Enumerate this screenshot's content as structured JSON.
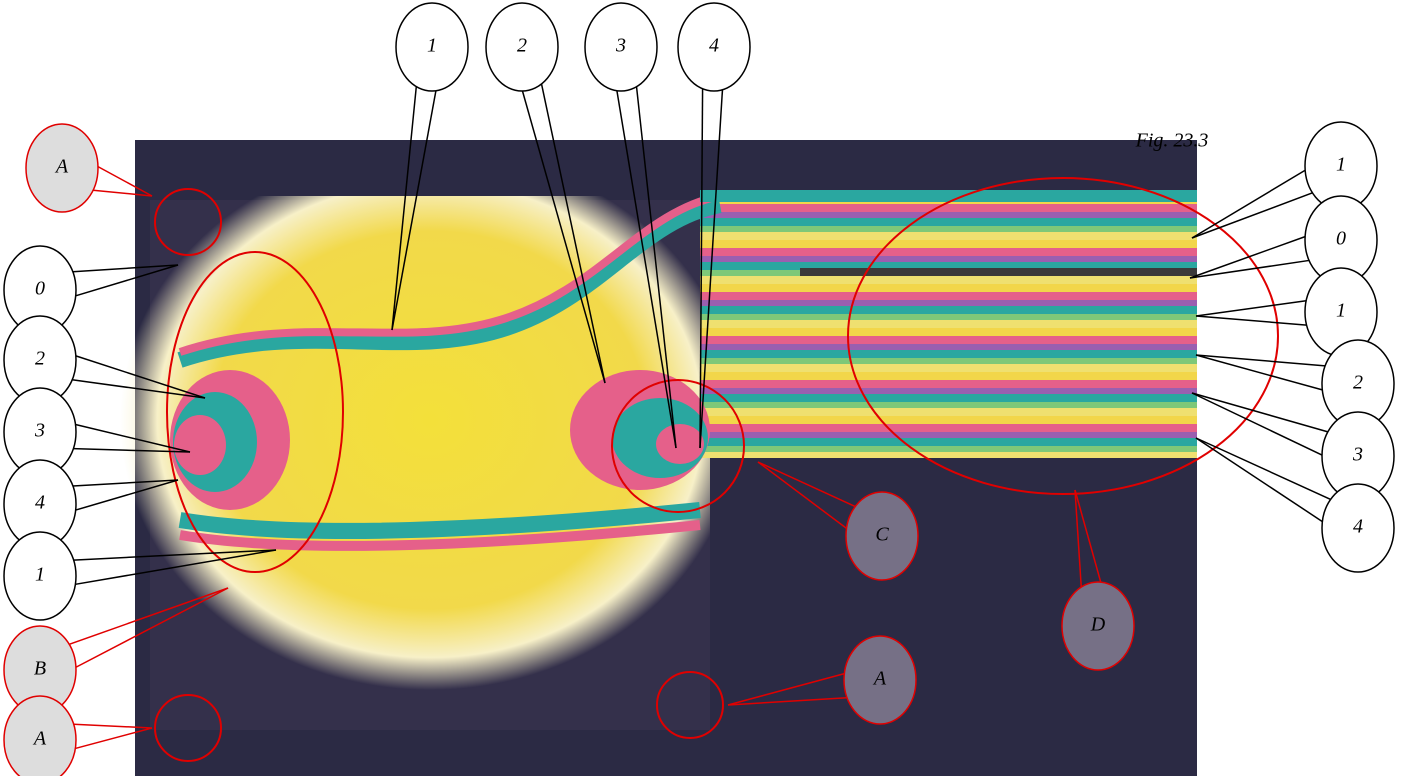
{
  "caption": "Fig. 23.3",
  "callouts": [
    {
      "label": "1"
    },
    {
      "label": "2"
    },
    {
      "label": "3"
    },
    {
      "label": "4"
    },
    {
      "label": "1"
    },
    {
      "label": "0"
    },
    {
      "label": "1"
    },
    {
      "label": "2"
    },
    {
      "label": "3"
    },
    {
      "label": "4"
    },
    {
      "label": "A"
    },
    {
      "label": "0"
    },
    {
      "label": "2"
    },
    {
      "label": "3"
    },
    {
      "label": "4"
    },
    {
      "label": "1"
    },
    {
      "label": "B"
    },
    {
      "label": "A"
    },
    {
      "label": "C"
    },
    {
      "label": "D"
    },
    {
      "label": "A"
    }
  ]
}
